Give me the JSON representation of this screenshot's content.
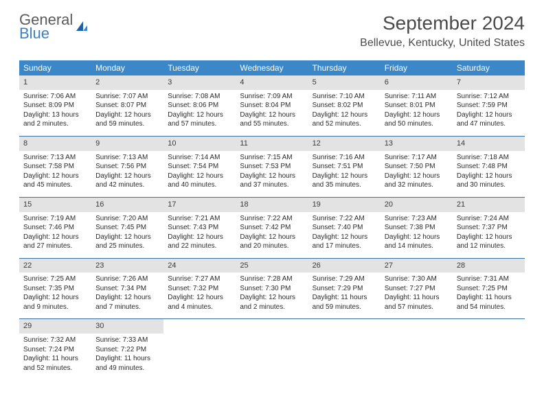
{
  "brand": {
    "line1": "General",
    "line2": "Blue",
    "gray": "#5a5a5a",
    "blue": "#3b7fc4"
  },
  "title": "September 2024",
  "location": "Bellevue, Kentucky, United States",
  "header_bg": "#3b87c8",
  "header_fg": "#ffffff",
  "daynum_bg": "#e3e3e3",
  "week_border": "#3b6fa0",
  "day_names": [
    "Sunday",
    "Monday",
    "Tuesday",
    "Wednesday",
    "Thursday",
    "Friday",
    "Saturday"
  ],
  "weeks": [
    [
      {
        "n": "1",
        "sr": "Sunrise: 7:06 AM",
        "ss": "Sunset: 8:09 PM",
        "dl": "Daylight: 13 hours and 2 minutes."
      },
      {
        "n": "2",
        "sr": "Sunrise: 7:07 AM",
        "ss": "Sunset: 8:07 PM",
        "dl": "Daylight: 12 hours and 59 minutes."
      },
      {
        "n": "3",
        "sr": "Sunrise: 7:08 AM",
        "ss": "Sunset: 8:06 PM",
        "dl": "Daylight: 12 hours and 57 minutes."
      },
      {
        "n": "4",
        "sr": "Sunrise: 7:09 AM",
        "ss": "Sunset: 8:04 PM",
        "dl": "Daylight: 12 hours and 55 minutes."
      },
      {
        "n": "5",
        "sr": "Sunrise: 7:10 AM",
        "ss": "Sunset: 8:02 PM",
        "dl": "Daylight: 12 hours and 52 minutes."
      },
      {
        "n": "6",
        "sr": "Sunrise: 7:11 AM",
        "ss": "Sunset: 8:01 PM",
        "dl": "Daylight: 12 hours and 50 minutes."
      },
      {
        "n": "7",
        "sr": "Sunrise: 7:12 AM",
        "ss": "Sunset: 7:59 PM",
        "dl": "Daylight: 12 hours and 47 minutes."
      }
    ],
    [
      {
        "n": "8",
        "sr": "Sunrise: 7:13 AM",
        "ss": "Sunset: 7:58 PM",
        "dl": "Daylight: 12 hours and 45 minutes."
      },
      {
        "n": "9",
        "sr": "Sunrise: 7:13 AM",
        "ss": "Sunset: 7:56 PM",
        "dl": "Daylight: 12 hours and 42 minutes."
      },
      {
        "n": "10",
        "sr": "Sunrise: 7:14 AM",
        "ss": "Sunset: 7:54 PM",
        "dl": "Daylight: 12 hours and 40 minutes."
      },
      {
        "n": "11",
        "sr": "Sunrise: 7:15 AM",
        "ss": "Sunset: 7:53 PM",
        "dl": "Daylight: 12 hours and 37 minutes."
      },
      {
        "n": "12",
        "sr": "Sunrise: 7:16 AM",
        "ss": "Sunset: 7:51 PM",
        "dl": "Daylight: 12 hours and 35 minutes."
      },
      {
        "n": "13",
        "sr": "Sunrise: 7:17 AM",
        "ss": "Sunset: 7:50 PM",
        "dl": "Daylight: 12 hours and 32 minutes."
      },
      {
        "n": "14",
        "sr": "Sunrise: 7:18 AM",
        "ss": "Sunset: 7:48 PM",
        "dl": "Daylight: 12 hours and 30 minutes."
      }
    ],
    [
      {
        "n": "15",
        "sr": "Sunrise: 7:19 AM",
        "ss": "Sunset: 7:46 PM",
        "dl": "Daylight: 12 hours and 27 minutes."
      },
      {
        "n": "16",
        "sr": "Sunrise: 7:20 AM",
        "ss": "Sunset: 7:45 PM",
        "dl": "Daylight: 12 hours and 25 minutes."
      },
      {
        "n": "17",
        "sr": "Sunrise: 7:21 AM",
        "ss": "Sunset: 7:43 PM",
        "dl": "Daylight: 12 hours and 22 minutes."
      },
      {
        "n": "18",
        "sr": "Sunrise: 7:22 AM",
        "ss": "Sunset: 7:42 PM",
        "dl": "Daylight: 12 hours and 20 minutes."
      },
      {
        "n": "19",
        "sr": "Sunrise: 7:22 AM",
        "ss": "Sunset: 7:40 PM",
        "dl": "Daylight: 12 hours and 17 minutes."
      },
      {
        "n": "20",
        "sr": "Sunrise: 7:23 AM",
        "ss": "Sunset: 7:38 PM",
        "dl": "Daylight: 12 hours and 14 minutes."
      },
      {
        "n": "21",
        "sr": "Sunrise: 7:24 AM",
        "ss": "Sunset: 7:37 PM",
        "dl": "Daylight: 12 hours and 12 minutes."
      }
    ],
    [
      {
        "n": "22",
        "sr": "Sunrise: 7:25 AM",
        "ss": "Sunset: 7:35 PM",
        "dl": "Daylight: 12 hours and 9 minutes."
      },
      {
        "n": "23",
        "sr": "Sunrise: 7:26 AM",
        "ss": "Sunset: 7:34 PM",
        "dl": "Daylight: 12 hours and 7 minutes."
      },
      {
        "n": "24",
        "sr": "Sunrise: 7:27 AM",
        "ss": "Sunset: 7:32 PM",
        "dl": "Daylight: 12 hours and 4 minutes."
      },
      {
        "n": "25",
        "sr": "Sunrise: 7:28 AM",
        "ss": "Sunset: 7:30 PM",
        "dl": "Daylight: 12 hours and 2 minutes."
      },
      {
        "n": "26",
        "sr": "Sunrise: 7:29 AM",
        "ss": "Sunset: 7:29 PM",
        "dl": "Daylight: 11 hours and 59 minutes."
      },
      {
        "n": "27",
        "sr": "Sunrise: 7:30 AM",
        "ss": "Sunset: 7:27 PM",
        "dl": "Daylight: 11 hours and 57 minutes."
      },
      {
        "n": "28",
        "sr": "Sunrise: 7:31 AM",
        "ss": "Sunset: 7:25 PM",
        "dl": "Daylight: 11 hours and 54 minutes."
      }
    ],
    [
      {
        "n": "29",
        "sr": "Sunrise: 7:32 AM",
        "ss": "Sunset: 7:24 PM",
        "dl": "Daylight: 11 hours and 52 minutes."
      },
      {
        "n": "30",
        "sr": "Sunrise: 7:33 AM",
        "ss": "Sunset: 7:22 PM",
        "dl": "Daylight: 11 hours and 49 minutes."
      },
      null,
      null,
      null,
      null,
      null
    ]
  ]
}
